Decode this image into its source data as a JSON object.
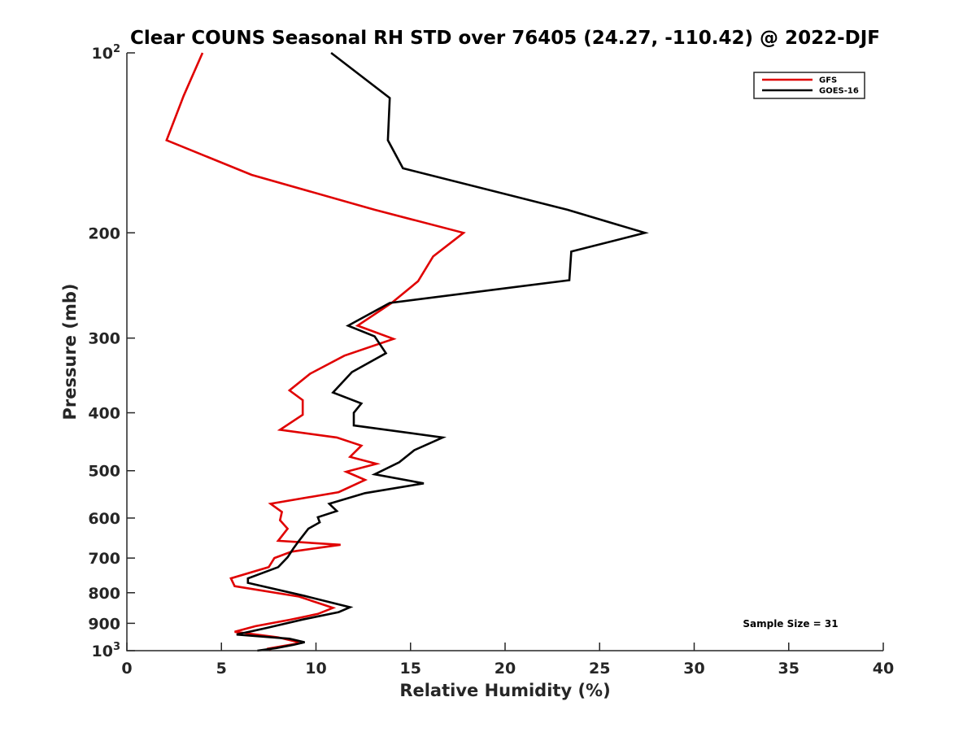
{
  "chart_data": {
    "type": "line",
    "title": "Clear COUNS Seasonal RH STD over 76405 (24.27, -110.42) @ 2022-DJF",
    "xlabel": "Relative Humidity (%)",
    "ylabel": "Pressure (mb)",
    "xlim": [
      0,
      40
    ],
    "ylim": [
      100,
      1000
    ],
    "y_scale": "log",
    "y_reversed": true,
    "x_ticks": [
      0,
      5,
      10,
      15,
      20,
      25,
      30,
      35,
      40
    ],
    "x_tick_labels": [
      "0",
      "5",
      "10",
      "15",
      "20",
      "25",
      "30",
      "35",
      "40"
    ],
    "y_ticks": [
      100,
      200,
      300,
      400,
      500,
      600,
      700,
      800,
      900,
      1000
    ],
    "y_tick_labels": [
      {
        "base": "10",
        "sup": "2"
      },
      {
        "base": "200",
        "sup": ""
      },
      {
        "base": "300",
        "sup": ""
      },
      {
        "base": "400",
        "sup": ""
      },
      {
        "base": "500",
        "sup": ""
      },
      {
        "base": "600",
        "sup": ""
      },
      {
        "base": "700",
        "sup": ""
      },
      {
        "base": "800",
        "sup": ""
      },
      {
        "base": "900",
        "sup": ""
      },
      {
        "base": "10",
        "sup": "3"
      }
    ],
    "grid": false,
    "legend_position": "top-right",
    "annotation": "Sample Size = 31",
    "series": [
      {
        "name": "GFS",
        "color": "#e00000",
        "points": [
          [
            4.0,
            100
          ],
          [
            3.0,
            118
          ],
          [
            2.1,
            140
          ],
          [
            6.6,
            160
          ],
          [
            13.1,
            183
          ],
          [
            17.8,
            200
          ],
          [
            16.2,
            219
          ],
          [
            15.4,
            241
          ],
          [
            14.0,
            262
          ],
          [
            12.2,
            286
          ],
          [
            14.1,
            301
          ],
          [
            11.5,
            321
          ],
          [
            9.7,
            344
          ],
          [
            8.6,
            367
          ],
          [
            9.3,
            381
          ],
          [
            9.3,
            403
          ],
          [
            8.1,
            427
          ],
          [
            11.1,
            440
          ],
          [
            12.4,
            454
          ],
          [
            11.8,
            474
          ],
          [
            13.2,
            487
          ],
          [
            11.6,
            502
          ],
          [
            12.6,
            518
          ],
          [
            11.2,
            543
          ],
          [
            7.6,
            568
          ],
          [
            8.2,
            586
          ],
          [
            8.1,
            605
          ],
          [
            8.5,
            625
          ],
          [
            8.0,
            655
          ],
          [
            11.3,
            665
          ],
          [
            8.7,
            683
          ],
          [
            7.8,
            700
          ],
          [
            7.5,
            725
          ],
          [
            5.5,
            757
          ],
          [
            5.7,
            780
          ],
          [
            9.1,
            812
          ],
          [
            10.9,
            848
          ],
          [
            10.1,
            868
          ],
          [
            8.6,
            888
          ],
          [
            6.8,
            910
          ],
          [
            5.7,
            930
          ],
          [
            8.0,
            950
          ],
          [
            8.9,
            965
          ],
          [
            9.1,
            972
          ],
          [
            8.2,
            983
          ],
          [
            7.5,
            992
          ],
          [
            7.6,
            1000
          ]
        ]
      },
      {
        "name": "GOES-16",
        "color": "#000000",
        "points": [
          [
            10.8,
            100
          ],
          [
            13.9,
            119
          ],
          [
            13.8,
            140
          ],
          [
            14.6,
            156
          ],
          [
            23.3,
            183
          ],
          [
            27.4,
            200
          ],
          [
            23.5,
            215
          ],
          [
            23.4,
            240
          ],
          [
            13.9,
            262
          ],
          [
            11.7,
            286
          ],
          [
            13.1,
            298
          ],
          [
            13.7,
            318
          ],
          [
            11.9,
            342
          ],
          [
            10.9,
            370
          ],
          [
            12.4,
            386
          ],
          [
            12.0,
            400
          ],
          [
            12.0,
            420
          ],
          [
            16.7,
            440
          ],
          [
            15.2,
            462
          ],
          [
            14.4,
            484
          ],
          [
            13.1,
            507
          ],
          [
            15.7,
            525
          ],
          [
            12.6,
            545
          ],
          [
            10.7,
            568
          ],
          [
            11.1,
            584
          ],
          [
            10.1,
            598
          ],
          [
            10.2,
            610
          ],
          [
            9.6,
            625
          ],
          [
            9.1,
            655
          ],
          [
            8.8,
            675
          ],
          [
            8.5,
            698
          ],
          [
            8.0,
            725
          ],
          [
            6.4,
            757
          ],
          [
            6.4,
            770
          ],
          [
            9.4,
            810
          ],
          [
            11.8,
            846
          ],
          [
            11.2,
            862
          ],
          [
            9.3,
            887
          ],
          [
            7.4,
            916
          ],
          [
            5.8,
            940
          ],
          [
            8.6,
            955
          ],
          [
            9.4,
            968
          ],
          [
            8.8,
            978
          ],
          [
            7.9,
            990
          ],
          [
            6.9,
            1000
          ]
        ]
      }
    ]
  }
}
